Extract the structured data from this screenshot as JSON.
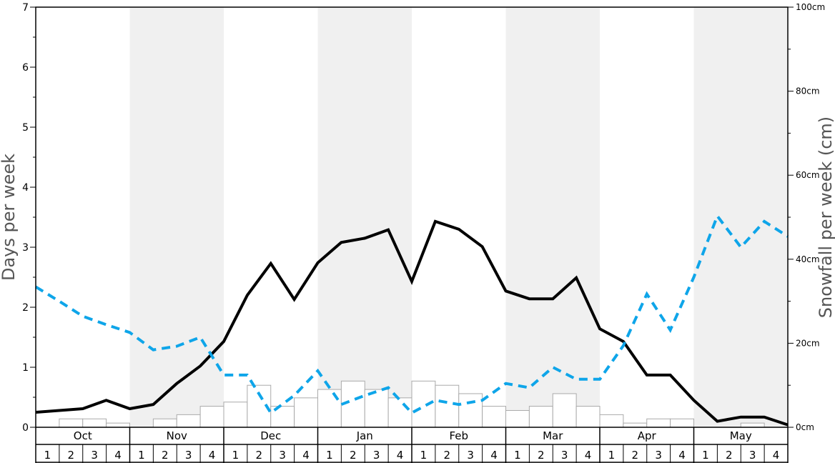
{
  "chart_data": {
    "type": "line",
    "title": "",
    "left_axis": {
      "label": "Days per week",
      "ylim": [
        0,
        7
      ],
      "ticks": [
        "0",
        "1",
        "2",
        "3",
        "4",
        "5",
        "6",
        "7"
      ]
    },
    "right_axis": {
      "label": "Snowfall per week (cm)",
      "ylim": [
        0,
        100
      ],
      "ticks": [
        "0cm",
        "20cm",
        "40cm",
        "60cm",
        "80cm",
        "100cm"
      ]
    },
    "months": [
      "Oct",
      "Nov",
      "Dec",
      "Jan",
      "Feb",
      "Mar",
      "Apr",
      "May"
    ],
    "week_labels": [
      "1",
      "2",
      "3",
      "4"
    ],
    "shaded_months": [
      "Nov",
      "Jan",
      "Mar",
      "May"
    ],
    "colors": {
      "solid_line": "#000000",
      "dashed_line": "#0ea5e9",
      "bars_fill": "#ffffff",
      "bars_stroke": "#aaaaaa",
      "shade": "#f0f0f0"
    },
    "series": [
      {
        "style": "solid",
        "axis": "left",
        "values": [
          0.25,
          0.28,
          0.31,
          0.45,
          0.31,
          0.38,
          0.73,
          1.02,
          1.43,
          2.2,
          2.73,
          2.13,
          2.74,
          3.08,
          3.15,
          3.29,
          2.43,
          3.43,
          3.3,
          3.01,
          2.27,
          2.14,
          2.14,
          2.49,
          1.64,
          1.43,
          0.87,
          0.87,
          0.45,
          0.1,
          0.17,
          0.17,
          0.04
        ]
      },
      {
        "style": "dashed",
        "axis": "left",
        "values": [
          2.34,
          2.1,
          1.85,
          1.71,
          1.58,
          1.29,
          1.35,
          1.5,
          0.87,
          0.87,
          0.24,
          0.53,
          0.94,
          0.38,
          0.53,
          0.66,
          0.24,
          0.45,
          0.38,
          0.45,
          0.73,
          0.66,
          1.0,
          0.8,
          0.8,
          1.36,
          2.22,
          1.62,
          2.5,
          3.52,
          3.0,
          3.43,
          3.18
        ]
      },
      {
        "style": "bar",
        "axis": "right",
        "values": [
          0,
          2,
          2,
          1,
          0,
          2,
          3,
          5,
          6,
          10,
          5,
          7,
          9,
          11,
          9,
          7,
          11,
          10,
          8,
          5,
          4,
          5,
          8,
          5,
          3,
          1,
          2,
          2,
          0,
          0,
          1,
          0
        ]
      }
    ]
  }
}
